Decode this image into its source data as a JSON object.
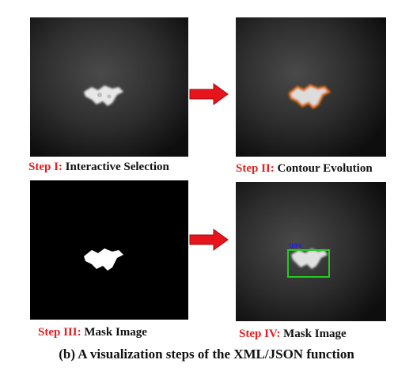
{
  "panels": [
    {
      "step": "Step I:",
      "label": "Interactive Selection"
    },
    {
      "step": "Step II:",
      "label": "Contour Evolution"
    },
    {
      "step": "Step III:",
      "label": "Mask Image"
    },
    {
      "step": "Step IV:",
      "label": "Mask Image"
    }
  ],
  "detection": {
    "class_label": "uav",
    "box_color": "#22cc22",
    "label_color": "#2222dd"
  },
  "colors": {
    "step_color": "#e02020",
    "arrow_color": "#e8141c",
    "contour_color": "#e07010"
  },
  "figure_caption": "(b) A visualization steps of the XML/JSON function"
}
